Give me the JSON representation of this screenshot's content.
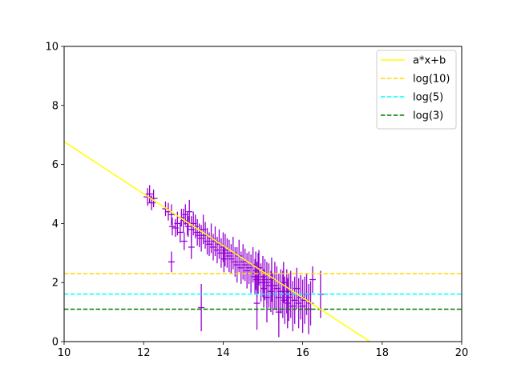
{
  "chart_data": {
    "type": "scatter",
    "xlim": [
      10,
      20
    ],
    "ylim": [
      0,
      10
    ],
    "xticks": [
      10,
      12,
      14,
      16,
      18,
      20
    ],
    "yticks": [
      0,
      2,
      4,
      6,
      8,
      10
    ],
    "grid": false,
    "legend_position": "top-right",
    "series": [
      {
        "name": "a*x+b",
        "kind": "fit-line",
        "color": "#ffff00",
        "style": "solid",
        "x": [
          10,
          17.69
        ],
        "y": [
          6.77,
          0
        ]
      },
      {
        "name": "log(10)",
        "kind": "hline",
        "color": "#ffd700",
        "style": "dashed",
        "y": 2.302585
      },
      {
        "name": "log(5)",
        "kind": "hline",
        "color": "#00ffff",
        "style": "dashed",
        "y": 1.609438
      },
      {
        "name": "log(3)",
        "kind": "hline",
        "color": "#008000",
        "style": "dashed",
        "y": 1.098612
      },
      {
        "name": "",
        "kind": "errorbar",
        "color": "#9400d3",
        "x": [
          12.1,
          12.15,
          12.2,
          12.25,
          12.55,
          12.62,
          12.7,
          12.72,
          12.8,
          12.85,
          12.92,
          12.95,
          13.0,
          13.02,
          13.05,
          13.1,
          13.12,
          13.15,
          13.2,
          13.25,
          13.3,
          13.35,
          13.4,
          13.45,
          13.5,
          13.55,
          13.6,
          13.65,
          13.7,
          13.75,
          13.8,
          13.85,
          13.9,
          13.95,
          14.0,
          14.02,
          14.05,
          14.1,
          14.15,
          14.2,
          14.25,
          14.3,
          14.35,
          14.4,
          14.45,
          14.5,
          14.55,
          14.6,
          14.65,
          14.7,
          14.75,
          14.8,
          14.82,
          14.85,
          14.88,
          14.9,
          14.95,
          15.0,
          15.02,
          15.05,
          15.1,
          15.15,
          15.2,
          15.22,
          15.25,
          15.3,
          15.35,
          15.4,
          15.45,
          15.5,
          15.52,
          15.55,
          15.6,
          15.62,
          15.65,
          15.7,
          15.75,
          15.8,
          15.85,
          15.9,
          15.95,
          16.0,
          16.05,
          16.1,
          16.15,
          16.2,
          16.25,
          16.45,
          13.45,
          15.1,
          14.85,
          15.4,
          12.7,
          13.2
        ],
        "y": [
          4.9,
          5.0,
          4.7,
          4.85,
          4.5,
          4.4,
          4.3,
          3.9,
          3.85,
          4.0,
          3.7,
          4.2,
          4.1,
          3.4,
          4.3,
          4.0,
          3.9,
          4.4,
          3.8,
          4.0,
          3.9,
          3.7,
          3.6,
          3.5,
          3.8,
          3.6,
          3.4,
          3.3,
          3.5,
          3.2,
          3.4,
          3.1,
          3.3,
          3.0,
          3.2,
          2.8,
          3.1,
          3.0,
          2.9,
          2.8,
          3.0,
          2.7,
          2.6,
          2.9,
          2.5,
          2.7,
          2.6,
          2.4,
          2.5,
          2.3,
          2.6,
          2.2,
          2.4,
          2.1,
          2.3,
          2.5,
          2.0,
          2.2,
          1.8,
          2.1,
          2.0,
          1.9,
          1.7,
          2.1,
          1.6,
          1.9,
          1.8,
          1.5,
          1.7,
          1.6,
          2.0,
          1.4,
          1.7,
          1.3,
          1.5,
          1.6,
          1.2,
          1.4,
          1.8,
          1.3,
          1.5,
          1.2,
          1.4,
          1.6,
          1.1,
          1.3,
          2.1,
          1.6,
          1.15,
          1.5,
          1.3,
          1.0,
          2.7,
          3.2
        ],
        "yerr": [
          0.3,
          0.3,
          0.25,
          0.3,
          0.25,
          0.3,
          0.35,
          0.3,
          0.3,
          0.4,
          0.35,
          0.3,
          0.4,
          0.3,
          0.35,
          0.4,
          0.35,
          0.4,
          0.45,
          0.4,
          0.4,
          0.45,
          0.4,
          0.45,
          0.5,
          0.45,
          0.45,
          0.4,
          0.5,
          0.45,
          0.5,
          0.45,
          0.5,
          0.5,
          0.5,
          0.45,
          0.55,
          0.5,
          0.55,
          0.5,
          0.55,
          0.5,
          0.6,
          0.55,
          0.55,
          0.6,
          0.55,
          0.6,
          0.55,
          0.65,
          0.6,
          0.6,
          0.65,
          0.6,
          0.7,
          0.6,
          0.65,
          0.7,
          0.65,
          0.7,
          0.7,
          0.75,
          0.7,
          0.75,
          0.7,
          0.8,
          0.75,
          0.8,
          0.75,
          0.8,
          0.7,
          0.8,
          0.75,
          0.85,
          0.8,
          0.8,
          0.85,
          0.8,
          0.7,
          0.85,
          0.75,
          0.9,
          0.8,
          0.7,
          0.85,
          0.75,
          0.45,
          0.8,
          0.8,
          0.85,
          0.9,
          0.85,
          0.35,
          0.4
        ],
        "xerr": [
          0.1,
          0.1,
          0.1,
          0.1,
          0.08,
          0.08,
          0.08,
          0.08,
          0.08,
          0.08,
          0.08,
          0.08,
          0.08,
          0.08,
          0.08,
          0.08,
          0.08,
          0.08,
          0.08,
          0.08,
          0.08,
          0.08,
          0.08,
          0.08,
          0.08,
          0.08,
          0.08,
          0.08,
          0.08,
          0.08,
          0.08,
          0.08,
          0.08,
          0.08,
          0.08,
          0.08,
          0.08,
          0.08,
          0.08,
          0.08,
          0.08,
          0.08,
          0.08,
          0.08,
          0.08,
          0.08,
          0.08,
          0.08,
          0.08,
          0.08,
          0.08,
          0.08,
          0.08,
          0.08,
          0.08,
          0.08,
          0.08,
          0.08,
          0.08,
          0.08,
          0.08,
          0.08,
          0.08,
          0.08,
          0.08,
          0.08,
          0.08,
          0.08,
          0.08,
          0.08,
          0.08,
          0.08,
          0.08,
          0.08,
          0.08,
          0.08,
          0.08,
          0.08,
          0.08,
          0.08,
          0.08,
          0.08,
          0.08,
          0.08,
          0.08,
          0.08,
          0.08,
          0.08,
          0.08,
          0.08,
          0.08,
          0.08,
          0.08,
          0.08
        ]
      }
    ]
  }
}
